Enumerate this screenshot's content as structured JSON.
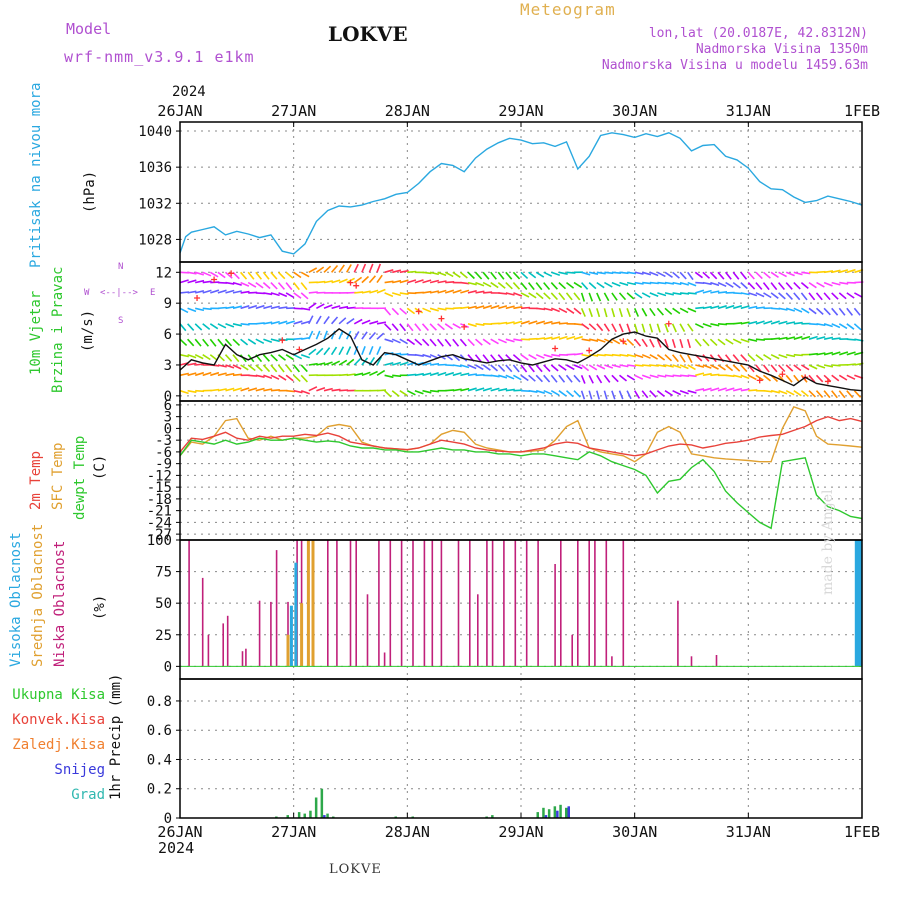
{
  "header": {
    "model_label": "Model",
    "model_name": "wrf-nmm_v3.9.1 e1km",
    "station": "LOKVE",
    "product": "Meteogram",
    "lonlat": "lon,lat (20.0187E, 42.8312N)",
    "elevation": "Nadmorska Visina 1350m",
    "model_elevation": "Nadmorska Visina u modelu 1459.63m",
    "year": "2024",
    "footer_station": "LOKVE",
    "credit": "made by Angel"
  },
  "colors": {
    "pressure": "#2aa8e0",
    "temp2m": "#e8423a",
    "sfc_temp": "#e0a030",
    "dewpt": "#2ec82e",
    "low_cloud": "#c0207a",
    "mid_cloud": "#e0a030",
    "high_cloud": "#2aa8e0",
    "total_precip": "#2ea84a",
    "conv_precip": "#e8423a",
    "frozen_precip": "#f08030",
    "snow": "#3a3adc",
    "hail": "#30b8b0",
    "model_text": "#b050d0",
    "product_text": "#e0b050",
    "grid": "#888888"
  },
  "x_axis": {
    "top_labels": [
      "26JAN",
      "27JAN",
      "28JAN",
      "29JAN",
      "30JAN",
      "31JAN",
      "1FEB"
    ],
    "bottom_labels": [
      "26JAN",
      "27JAN",
      "28JAN",
      "29JAN",
      "30JAN",
      "31JAN",
      "1FEB"
    ],
    "bottom_year": "2024"
  },
  "panels": {
    "pressure": {
      "title": "Pritisak na nivou mora",
      "unit": "(hPa)",
      "ticks": [
        "1040",
        "1036",
        "1032",
        "1028"
      ]
    },
    "wind": {
      "title1": "10m Vjetar",
      "title2": "Brzina i Pravac",
      "unit": "(m/s)",
      "ticks": [
        "12",
        "9",
        "6",
        "3",
        "0"
      ],
      "compass_n": "N",
      "compass_s": "S",
      "compass_w": "W",
      "compass_e": "E"
    },
    "temp": {
      "t1": "2m Temp",
      "t2": "SFC Temp",
      "t3": "dewpt Temp",
      "unit": "(C)",
      "ticks": [
        "6",
        "3",
        "0",
        "-3",
        "-6",
        "-9",
        "-12",
        "-15",
        "-18",
        "-21",
        "-24",
        "-27"
      ]
    },
    "cloud": {
      "t1": "Visoka Oblacnost",
      "t2": "Srednja Oblacnost",
      "t3": "Niska Oblacnost",
      "unit": "(%)",
      "ticks": [
        "100",
        "75",
        "50",
        "25",
        "0"
      ]
    },
    "precip": {
      "l1": "Ukupna Kisa",
      "l2": "Konvek.Kisa",
      "l3": "Zaledj.Kisa",
      "l4": "Snijeg",
      "l5": "Grad",
      "unit": "1hr Precip (mm)",
      "ticks": [
        "0.8",
        "0.6",
        "0.4",
        "0.2",
        "0"
      ]
    }
  },
  "chart_data": [
    {
      "type": "line",
      "title": "Pritisak na nivou mora",
      "ylabel": "(hPa)",
      "x_unit": "days since 26JAN 00UTC",
      "ylim": [
        1025.5,
        1041
      ],
      "series": [
        {
          "name": "Pritisak na nivou mora",
          "x": [
            0,
            0.05,
            0.1,
            0.2,
            0.3,
            0.4,
            0.5,
            0.6,
            0.7,
            0.8,
            0.9,
            1.0,
            1.1,
            1.2,
            1.3,
            1.4,
            1.5,
            1.6,
            1.7,
            1.8,
            1.9,
            2.0,
            2.1,
            2.2,
            2.3,
            2.4,
            2.5,
            2.6,
            2.7,
            2.8,
            2.9,
            3.0,
            3.1,
            3.2,
            3.3,
            3.4,
            3.5,
            3.6,
            3.7,
            3.8,
            3.9,
            4.0,
            4.1,
            4.2,
            4.3,
            4.4,
            4.5,
            4.6,
            4.7,
            4.8,
            4.9,
            5.0,
            5.1,
            5.2,
            5.3,
            5.4,
            5.5,
            5.6,
            5.7,
            5.8,
            5.9,
            6.0
          ],
          "y": [
            1026.5,
            1028.3,
            1028.8,
            1029.1,
            1029.4,
            1028.5,
            1028.9,
            1028.6,
            1028.2,
            1028.5,
            1026.7,
            1026.4,
            1027.5,
            1030.0,
            1031.2,
            1031.7,
            1031.6,
            1031.8,
            1032.2,
            1032.5,
            1033.0,
            1033.2,
            1034.2,
            1035.5,
            1036.4,
            1036.2,
            1035.5,
            1037.0,
            1038.0,
            1038.7,
            1039.2,
            1039.0,
            1038.6,
            1038.7,
            1038.3,
            1038.8,
            1035.8,
            1037.2,
            1039.5,
            1039.8,
            1039.6,
            1039.3,
            1039.7,
            1039.4,
            1039.8,
            1039.2,
            1037.8,
            1038.4,
            1038.5,
            1037.2,
            1036.8,
            1035.9,
            1034.4,
            1033.6,
            1033.5,
            1032.7,
            1032.1,
            1032.3,
            1032.8,
            1032.5,
            1032.2,
            1031.8
          ]
        }
      ]
    },
    {
      "type": "line",
      "title": "10m Vjetar Brzina i Pravac",
      "ylabel": "(m/s)",
      "x_unit": "days since 26JAN 00UTC",
      "ylim": [
        -0.5,
        13
      ],
      "series": [
        {
          "name": "wind speed",
          "x": [
            0,
            0.1,
            0.2,
            0.3,
            0.4,
            0.5,
            0.6,
            0.7,
            0.8,
            0.9,
            1.0,
            1.1,
            1.2,
            1.3,
            1.4,
            1.5,
            1.6,
            1.7,
            1.8,
            1.9,
            2.0,
            2.1,
            2.2,
            2.3,
            2.4,
            2.5,
            2.6,
            2.7,
            2.8,
            2.9,
            3.0,
            3.1,
            3.2,
            3.3,
            3.4,
            3.5,
            3.6,
            3.7,
            3.8,
            3.9,
            4.0,
            4.1,
            4.2,
            4.3,
            4.4,
            4.5,
            4.6,
            4.7,
            4.8,
            4.9,
            5.0,
            5.1,
            5.2,
            5.3,
            5.4,
            5.5,
            5.6,
            5.7,
            5.8,
            5.9,
            6.0
          ],
          "y": [
            2.5,
            3.5,
            3.2,
            3.0,
            5.0,
            4.0,
            3.5,
            4.0,
            4.2,
            4.5,
            4.0,
            4.5,
            5.0,
            5.6,
            6.5,
            5.8,
            3.5,
            3.0,
            4.2,
            4.0,
            3.5,
            3.0,
            3.4,
            3.8,
            4.0,
            3.6,
            3.4,
            3.2,
            3.4,
            3.5,
            3.2,
            3.0,
            3.3,
            3.6,
            3.5,
            3.2,
            3.8,
            4.5,
            5.5,
            6.0,
            6.2,
            5.8,
            5.6,
            4.5,
            4.2,
            4.0,
            3.8,
            3.6,
            3.4,
            3.2,
            3.0,
            2.4,
            2.0,
            1.5,
            1.0,
            1.8,
            1.2,
            1.0,
            0.8,
            0.6,
            0.5
          ]
        }
      ]
    },
    {
      "type": "line",
      "title": "2m Temp / SFC Temp / dewpt Temp",
      "ylabel": "(C)",
      "x_unit": "days since 26JAN 00UTC",
      "ylim": [
        -28.5,
        7
      ],
      "series": [
        {
          "name": "2m Temp",
          "x": [
            0,
            0.1,
            0.2,
            0.3,
            0.4,
            0.5,
            0.6,
            0.7,
            0.8,
            0.9,
            1.0,
            1.1,
            1.2,
            1.3,
            1.4,
            1.5,
            1.6,
            1.7,
            1.8,
            1.9,
            2.0,
            2.1,
            2.2,
            2.3,
            2.4,
            2.5,
            2.6,
            2.7,
            2.8,
            2.9,
            3.0,
            3.1,
            3.2,
            3.3,
            3.4,
            3.5,
            3.6,
            3.7,
            3.8,
            3.9,
            4.0,
            4.1,
            4.2,
            4.3,
            4.4,
            4.5,
            4.6,
            4.7,
            4.8,
            4.9,
            5.0,
            5.1,
            5.2,
            5.3,
            5.4,
            5.5,
            5.6,
            5.7,
            5.8,
            5.9,
            6.0
          ],
          "y": [
            -6,
            -2.5,
            -2.8,
            -2.0,
            -1.0,
            -2.5,
            -3.0,
            -2.0,
            -2.5,
            -2.0,
            -2.0,
            -1.5,
            -1.8,
            -1.2,
            -2.0,
            -3.5,
            -4.0,
            -4.5,
            -5.0,
            -5.2,
            -5.4,
            -5.0,
            -4.0,
            -3.0,
            -3.5,
            -4.0,
            -5.0,
            -5.5,
            -5.8,
            -6.0,
            -6.0,
            -5.5,
            -5.0,
            -4.0,
            -3.5,
            -3.8,
            -5.0,
            -5.5,
            -6.0,
            -6.5,
            -7.0,
            -6.5,
            -5.5,
            -4.5,
            -4.0,
            -4.2,
            -5.0,
            -4.5,
            -3.8,
            -3.5,
            -3.0,
            -2.2,
            -1.8,
            -1.5,
            -0.5,
            0.5,
            2.0,
            3.0,
            2.0,
            2.5,
            1.8
          ]
        },
        {
          "name": "SFC Temp",
          "x": [
            0,
            0.1,
            0.2,
            0.3,
            0.4,
            0.5,
            0.6,
            0.7,
            0.8,
            0.9,
            1.0,
            1.1,
            1.2,
            1.3,
            1.4,
            1.5,
            1.6,
            1.7,
            1.8,
            1.9,
            2.0,
            2.1,
            2.2,
            2.3,
            2.4,
            2.5,
            2.6,
            2.7,
            2.8,
            2.9,
            3.0,
            3.1,
            3.2,
            3.3,
            3.4,
            3.5,
            3.6,
            3.7,
            3.8,
            3.9,
            4.0,
            4.1,
            4.2,
            4.3,
            4.4,
            4.5,
            4.6,
            4.7,
            4.8,
            4.9,
            5.0,
            5.1,
            5.2,
            5.3,
            5.4,
            5.5,
            5.6,
            5.7,
            5.8,
            5.9,
            6.0
          ],
          "y": [
            -7,
            -3.5,
            -4.0,
            -2.0,
            2.0,
            2.5,
            -2.5,
            -3.0,
            -2.0,
            -3.0,
            -2.5,
            -2.5,
            -2.0,
            0.5,
            1.0,
            0.5,
            -3.5,
            -4.5,
            -5.0,
            -5.2,
            -5.5,
            -5.0,
            -4.0,
            -1.5,
            -0.5,
            -1.0,
            -4.0,
            -5.0,
            -5.5,
            -6.0,
            -6.0,
            -5.8,
            -5.5,
            -3.0,
            0.5,
            2.0,
            -5.0,
            -6.0,
            -6.5,
            -7.0,
            -8.5,
            -6.5,
            -1.0,
            0.5,
            -1.0,
            -6.5,
            -7.0,
            -7.5,
            -7.8,
            -8.0,
            -8.2,
            -8.5,
            -8.5,
            0.0,
            5.5,
            4.5,
            -2.0,
            -4.0,
            -4.2,
            -4.5,
            -4.8
          ]
        },
        {
          "name": "dewpt Temp",
          "x": [
            0,
            0.1,
            0.2,
            0.3,
            0.4,
            0.5,
            0.6,
            0.7,
            0.8,
            0.9,
            1.0,
            1.1,
            1.2,
            1.3,
            1.4,
            1.5,
            1.6,
            1.7,
            1.8,
            1.9,
            2.0,
            2.1,
            2.2,
            2.3,
            2.4,
            2.5,
            2.6,
            2.7,
            2.8,
            2.9,
            3.0,
            3.1,
            3.2,
            3.3,
            3.4,
            3.5,
            3.6,
            3.7,
            3.8,
            3.9,
            4.0,
            4.1,
            4.2,
            4.3,
            4.4,
            4.5,
            4.6,
            4.7,
            4.8,
            4.9,
            5.0,
            5.1,
            5.2,
            5.3,
            5.4,
            5.5,
            5.6,
            5.7,
            5.8,
            5.9,
            6.0
          ],
          "y": [
            -7,
            -3.0,
            -3.5,
            -4.0,
            -3.0,
            -4.0,
            -3.5,
            -2.5,
            -3.0,
            -3.0,
            -2.5,
            -3.0,
            -3.5,
            -3.2,
            -3.5,
            -4.5,
            -5.0,
            -5.0,
            -5.5,
            -5.5,
            -6.0,
            -6.0,
            -5.5,
            -5.0,
            -5.5,
            -5.5,
            -6.0,
            -6.0,
            -6.5,
            -6.5,
            -7.0,
            -6.5,
            -6.5,
            -7.0,
            -7.5,
            -8.0,
            -6.0,
            -7.0,
            -8.5,
            -9.5,
            -10.5,
            -12.0,
            -16.5,
            -13.5,
            -13.0,
            -10.0,
            -8.0,
            -11.0,
            -16.0,
            -19.0,
            -21.5,
            -24.0,
            -25.5,
            -8.5,
            -8.0,
            -7.5,
            -17.0,
            -20.0,
            -21.0,
            -22.5,
            -23.0
          ]
        }
      ]
    },
    {
      "type": "bar",
      "title": "Visoka / Srednja / Niska Oblacnost",
      "ylabel": "(%)",
      "x_unit": "days since 26JAN 00UTC",
      "ylim": [
        0,
        100
      ],
      "series": [
        {
          "name": "Niska Oblacnost",
          "x": [
            0.08,
            0.2,
            0.25,
            0.38,
            0.42,
            0.55,
            0.58,
            0.7,
            0.8,
            0.85,
            0.95,
            1.03,
            1.07,
            1.13,
            1.17,
            1.3,
            1.38,
            1.5,
            1.55,
            1.65,
            1.75,
            1.8,
            1.85,
            1.95,
            2.05,
            2.15,
            2.22,
            2.3,
            2.45,
            2.55,
            2.62,
            2.7,
            2.75,
            2.85,
            2.95,
            3.05,
            3.15,
            3.3,
            3.35,
            3.45,
            3.5,
            3.6,
            3.65,
            3.75,
            3.8,
            3.9,
            4.38,
            4.5,
            4.72
          ],
          "y": [
            100,
            70,
            25,
            34,
            40,
            12,
            14,
            52,
            51,
            92,
            51,
            100,
            100,
            100,
            100,
            100,
            100,
            100,
            100,
            57,
            100,
            11,
            100,
            100,
            100,
            100,
            100,
            100,
            100,
            100,
            57,
            100,
            100,
            100,
            100,
            100,
            100,
            81,
            100,
            25,
            100,
            100,
            100,
            100,
            8,
            100,
            52,
            8,
            9
          ]
        },
        {
          "name": "Srednja Oblacnost",
          "x": [
            0.95,
            1.02,
            1.07,
            1.13,
            1.17
          ],
          "y": [
            25,
            48,
            50,
            100,
            100
          ]
        },
        {
          "name": "Visoka Oblacnost",
          "x": [
            0.98,
            1.02,
            5.95,
            5.97,
            5.99
          ],
          "y": [
            48,
            82,
            100,
            100,
            100
          ]
        }
      ]
    },
    {
      "type": "bar",
      "title": "1hr Precip",
      "ylabel": "1hr Precip (mm)",
      "x_unit": "days since 26JAN 00UTC",
      "ylim": [
        0,
        0.95
      ],
      "series": [
        {
          "name": "Ukupna Kisa",
          "x": [
            0.85,
            0.95,
            1.05,
            1.1,
            1.15,
            1.2,
            1.25,
            1.3,
            1.35,
            1.9,
            2.05,
            2.7,
            2.75,
            3.15,
            3.2,
            3.25,
            3.3,
            3.35,
            3.4
          ],
          "y": [
            0.01,
            0.02,
            0.04,
            0.03,
            0.05,
            0.14,
            0.2,
            0.03,
            0.01,
            0.01,
            0.01,
            0.01,
            0.02,
            0.04,
            0.07,
            0.06,
            0.08,
            0.09,
            0.07
          ]
        },
        {
          "name": "Snijeg",
          "x": [
            1.25,
            3.2,
            3.3,
            3.4
          ],
          "y": [
            0.02,
            0.02,
            0.05,
            0.08
          ]
        }
      ]
    }
  ]
}
